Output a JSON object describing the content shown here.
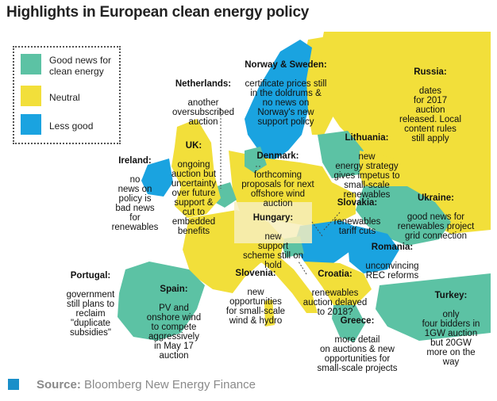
{
  "title": "Highlights in European clean energy policy",
  "colors": {
    "good": "#5cc2a4",
    "neutral": "#f2df3a",
    "less_good": "#1aa3e0",
    "sea": "#ffffff"
  },
  "legend": {
    "items": [
      {
        "label": "Good news for\nclean energy",
        "color": "#5cc2a4"
      },
      {
        "label": "Neutral",
        "color": "#f2df3a"
      },
      {
        "label": "Less good",
        "color": "#1aa3e0"
      }
    ]
  },
  "annotations": {
    "norway_sweden": {
      "name": "Norway & Sweden:",
      "text": "certificate prices still\nin the doldrums &\nno news on\nNorway's new\nsupport policy"
    },
    "russia": {
      "name": "Russia:",
      "text": "dates\nfor 2017\nauction\nreleased. Local\ncontent rules\nstill apply"
    },
    "netherlands": {
      "name": "Netherlands:",
      "text": "another\noversubscribed\nauction"
    },
    "lithuania": {
      "name": "Lithuania:",
      "text": "new\nenergy strategy\ngives impetus to\nsmall-scale\nrenewables"
    },
    "uk": {
      "name": "UK:",
      "text": "ongoing\nauction but\nuncertainty\nover future\nsupport &\ncut to\nembedded\nbenefits"
    },
    "ireland": {
      "name": "Ireland:",
      "text": "no\nnews on\npolicy is\nbad news\nfor\nrenewables"
    },
    "denmark": {
      "name": "Denmark:",
      "text": "forthcoming\nproposals for next\noffshore wind\nauction"
    },
    "slovakia": {
      "name": "Slovakia:",
      "text": "renewables\ntariff cuts"
    },
    "ukraine": {
      "name": "Ukraine:",
      "text": "good news for\nrenewables project\ngrid connection"
    },
    "hungary": {
      "name": "Hungary:",
      "text": "new\nsupport\nscheme still on\nhold"
    },
    "romania": {
      "name": "Romania:",
      "text": "unconvincing\nREC reforms"
    },
    "portugal": {
      "name": "Portugal:",
      "text": "government\nstill plans to\nreclaim\n\"duplicate\nsubsidies\""
    },
    "spain": {
      "name": "Spain:",
      "text": "PV and\nonshore wind\nto compete\naggressively\nin May 17\nauction"
    },
    "slovenia": {
      "name": "Slovenia:",
      "text": "new\nopportunities\nfor small-scale\nwind & hydro"
    },
    "croatia": {
      "name": "Croatia:",
      "text": "renewables\nauction delayed\nto 2018?"
    },
    "turkey": {
      "name": "Turkey:",
      "text": "only\nfour bidders in\n1GW auction\nbut 20GW\nmore on the\nway"
    },
    "greece": {
      "name": "Greece:",
      "text": "more detail\non auctions & new\nopportunities for\nsmall-scale projects"
    }
  },
  "footer": {
    "source_label": "Source:",
    "source_text": "Bloomberg New Energy Finance"
  }
}
